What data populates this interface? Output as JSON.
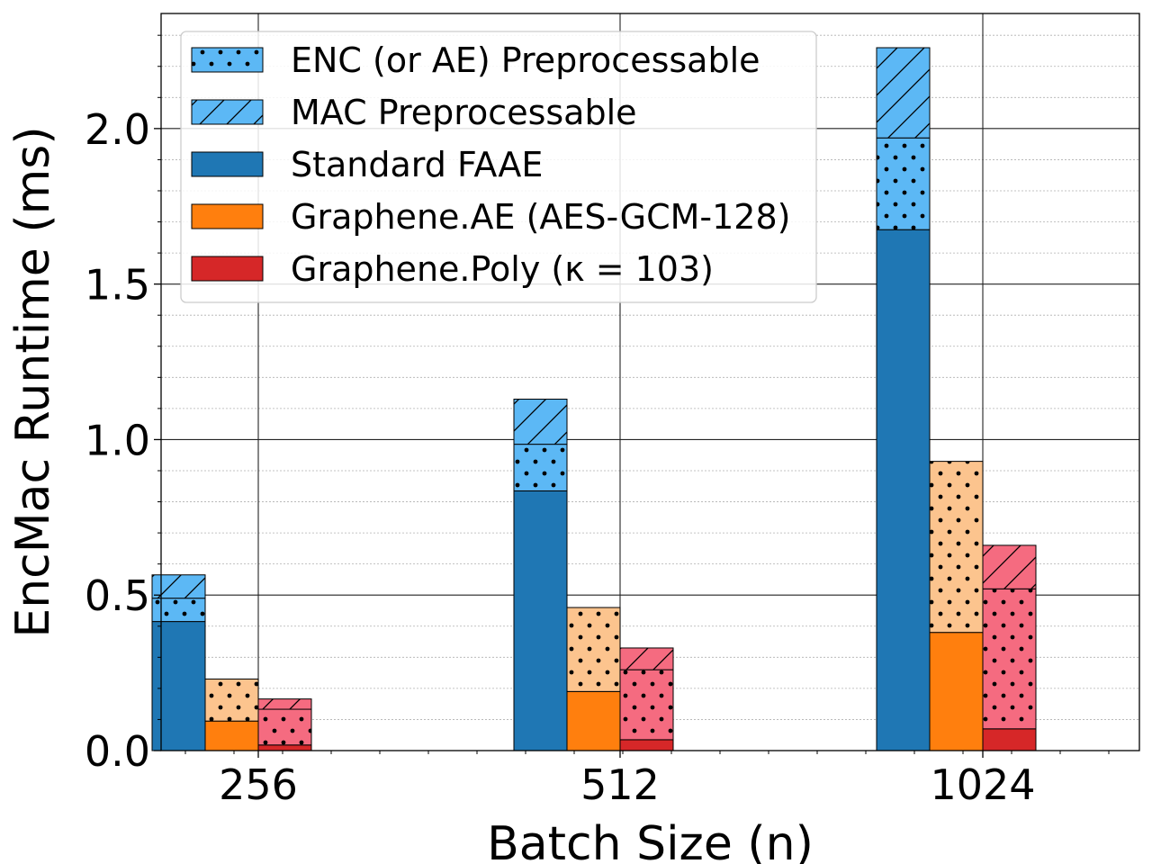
{
  "chart_data": {
    "type": "bar",
    "subtype": "grouped-stacked",
    "title": "",
    "xlabel": "Batch Size (n)",
    "ylabel": "EncMac Runtime (ms)",
    "ylim": [
      0,
      2.37
    ],
    "yticks": [
      0.0,
      0.5,
      1.0,
      1.5,
      2.0
    ],
    "ytick_labels": [
      "0.0",
      "0.5",
      "1.0",
      "1.5",
      "2.0"
    ],
    "yminor_step": 0.1,
    "categories": [
      "256",
      "512",
      "1024"
    ],
    "grid": "major and minor",
    "legend_position": "top-left",
    "legend": [
      {
        "label": "ENC (or AE) Preprocessable",
        "color": "#5cb8f5",
        "hatch": "dots"
      },
      {
        "label": "MAC Preprocessable",
        "color": "#5cb8f5",
        "hatch": "diagonal"
      },
      {
        "label": "Standard FAAE",
        "color": "#1f77b4",
        "hatch": "none"
      },
      {
        "label": "Graphene.AE (AES-GCM-128)",
        "color": "#ff7f0e",
        "hatch": "none"
      },
      {
        "label": "Graphene.Poly (κ = 103)",
        "color": "#d62728",
        "hatch": "none"
      }
    ],
    "series": [
      {
        "name": "Standard FAAE",
        "base_color": "#1f77b4",
        "light_color": "#5cb8f5",
        "base": [
          0.415,
          0.835,
          1.675
        ],
        "enc_preprocessable": [
          0.075,
          0.15,
          0.295
        ],
        "mac_preprocessable": [
          0.075,
          0.145,
          0.29
        ]
      },
      {
        "name": "Graphene.AE (AES-GCM-128)",
        "base_color": "#ff7f0e",
        "light_color": "#fcc48e",
        "base": [
          0.095,
          0.19,
          0.38
        ],
        "enc_preprocessable": [
          0.135,
          0.27,
          0.55
        ],
        "mac_preprocessable": [
          0.0,
          0.0,
          0.0
        ]
      },
      {
        "name": "Graphene.Poly (κ = 103)",
        "base_color": "#d62728",
        "light_color": "#f56b80",
        "base": [
          0.018,
          0.035,
          0.07
        ],
        "enc_preprocessable": [
          0.115,
          0.225,
          0.45
        ],
        "mac_preprocessable": [
          0.033,
          0.07,
          0.14
        ]
      }
    ]
  }
}
